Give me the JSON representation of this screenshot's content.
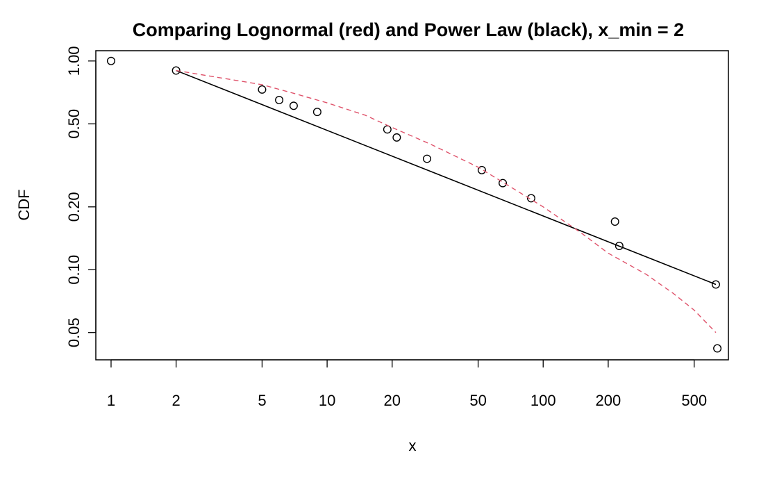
{
  "chart_data": {
    "type": "scatter",
    "title": "Comparing Lognormal (red) and Power Law (black), x_min = 2",
    "xlabel": "x",
    "ylabel": "CDF",
    "x_scale": "log",
    "y_scale": "log",
    "xlim": [
      0.85,
      720
    ],
    "ylim": [
      0.037,
      1.12
    ],
    "x_ticks": [
      1,
      2,
      5,
      10,
      20,
      50,
      100,
      200,
      500
    ],
    "x_tick_labels": [
      "1",
      "2",
      "5",
      "10",
      "20",
      "50",
      "100",
      "200",
      "500"
    ],
    "y_ticks": [
      0.05,
      0.1,
      0.2,
      0.5,
      1.0
    ],
    "y_tick_labels": [
      "0.05",
      "0.10",
      "0.20",
      "0.50",
      "1.00"
    ],
    "grid": false,
    "legend": "none",
    "series": [
      {
        "type": "scatter",
        "marker": "open-circle",
        "color": "#000000",
        "x": [
          1,
          2,
          5,
          6,
          7,
          9,
          19,
          21,
          29,
          52,
          65,
          88,
          215,
          225,
          630,
          640
        ],
        "y": [
          1.0,
          0.9,
          0.73,
          0.65,
          0.61,
          0.57,
          0.47,
          0.43,
          0.34,
          0.3,
          0.26,
          0.22,
          0.17,
          0.13,
          0.085,
          0.042
        ]
      },
      {
        "type": "line",
        "style": "solid",
        "color": "#000000",
        "x": [
          2,
          630
        ],
        "y": [
          0.9,
          0.085
        ]
      },
      {
        "type": "line",
        "style": "dashed",
        "color": "#df536b",
        "x": [
          2,
          3,
          5,
          7,
          10,
          15,
          20,
          30,
          50,
          75,
          100,
          150,
          200,
          300,
          400,
          500,
          630
        ],
        "y": [
          0.9,
          0.84,
          0.77,
          0.7,
          0.63,
          0.55,
          0.48,
          0.4,
          0.31,
          0.24,
          0.2,
          0.15,
          0.12,
          0.095,
          0.077,
          0.064,
          0.05
        ]
      }
    ]
  }
}
